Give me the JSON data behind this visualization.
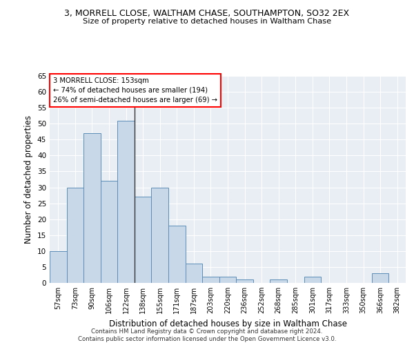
{
  "title1": "3, MORRELL CLOSE, WALTHAM CHASE, SOUTHAMPTON, SO32 2EX",
  "title2": "Size of property relative to detached houses in Waltham Chase",
  "xlabel": "Distribution of detached houses by size in Waltham Chase",
  "ylabel": "Number of detached properties",
  "categories": [
    "57sqm",
    "73sqm",
    "90sqm",
    "106sqm",
    "122sqm",
    "138sqm",
    "155sqm",
    "171sqm",
    "187sqm",
    "203sqm",
    "220sqm",
    "236sqm",
    "252sqm",
    "268sqm",
    "285sqm",
    "301sqm",
    "317sqm",
    "333sqm",
    "350sqm",
    "366sqm",
    "382sqm"
  ],
  "values": [
    10,
    30,
    47,
    32,
    51,
    27,
    30,
    18,
    6,
    2,
    2,
    1,
    0,
    1,
    0,
    2,
    0,
    0,
    0,
    3,
    0
  ],
  "bar_color": "#c8d8e8",
  "bar_edge_color": "#5b8db8",
  "annotation_text1": "3 MORRELL CLOSE: 153sqm",
  "annotation_text2": "← 74% of detached houses are smaller (194)",
  "annotation_text3": "26% of semi-detached houses are larger (69) →",
  "annotation_box_color": "white",
  "annotation_edge_color": "red",
  "vertical_line_x": 4.5,
  "ylim": [
    0,
    65
  ],
  "yticks": [
    0,
    5,
    10,
    15,
    20,
    25,
    30,
    35,
    40,
    45,
    50,
    55,
    60,
    65
  ],
  "background_color": "#e8eef4",
  "footer1": "Contains HM Land Registry data © Crown copyright and database right 2024.",
  "footer2": "Contains public sector information licensed under the Open Government Licence v3.0."
}
